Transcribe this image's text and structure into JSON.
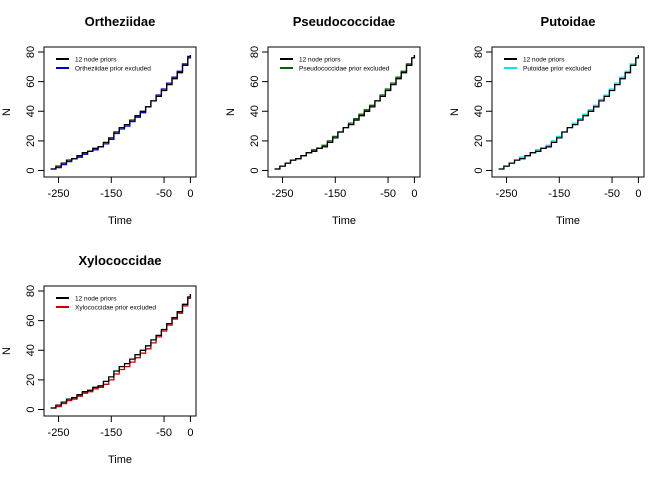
{
  "chart_data": [
    {
      "type": "line",
      "title": "Ortheziidae",
      "xlabel": "Time",
      "ylabel": "N",
      "xlim": [
        -270,
        3
      ],
      "ylim": [
        -1,
        80
      ],
      "xticks": [
        -250,
        -150,
        -50,
        0
      ],
      "yticks": [
        0,
        20,
        40,
        60,
        80
      ],
      "legend_position": "top-left",
      "series": [
        {
          "name": "12 node priors",
          "color": "#000000",
          "x": [
            -265,
            -255,
            -245,
            -235,
            -225,
            -215,
            -205,
            -195,
            -185,
            -175,
            -165,
            -155,
            -145,
            -135,
            -125,
            -115,
            -105,
            -95,
            -85,
            -75,
            -65,
            -55,
            -45,
            -35,
            -25,
            -15,
            -5,
            0
          ],
          "y": [
            1,
            3,
            5,
            7,
            8,
            10,
            12,
            13,
            15,
            16,
            19,
            22,
            26,
            29,
            31,
            34,
            37,
            40,
            43,
            47,
            50,
            54,
            58,
            62,
            66,
            71,
            76,
            78
          ]
        },
        {
          "name": "Ortheziidae prior excluded",
          "color": "#0000cc",
          "x": [
            -265,
            -255,
            -245,
            -235,
            -225,
            -215,
            -205,
            -195,
            -185,
            -175,
            -165,
            -155,
            -145,
            -135,
            -125,
            -115,
            -105,
            -95,
            -85,
            -75,
            -65,
            -55,
            -45,
            -35,
            -25,
            -15,
            -5,
            0
          ],
          "y": [
            1,
            2,
            4,
            6,
            8,
            9,
            11,
            13,
            14,
            16,
            18,
            21,
            25,
            28,
            30,
            33,
            36,
            39,
            43,
            47,
            51,
            55,
            59,
            63,
            67,
            72,
            77,
            78
          ]
        }
      ]
    },
    {
      "type": "line",
      "title": "Pseudococcidae",
      "xlabel": "Time",
      "ylabel": "N",
      "xlim": [
        -270,
        3
      ],
      "ylim": [
        -1,
        80
      ],
      "xticks": [
        -250,
        -150,
        -50,
        0
      ],
      "yticks": [
        0,
        20,
        40,
        60,
        80
      ],
      "legend_position": "top-left",
      "series": [
        {
          "name": "12 node priors",
          "color": "#000000",
          "x": [
            -265,
            -255,
            -245,
            -235,
            -225,
            -215,
            -205,
            -195,
            -185,
            -175,
            -165,
            -155,
            -145,
            -135,
            -125,
            -115,
            -105,
            -95,
            -85,
            -75,
            -65,
            -55,
            -45,
            -35,
            -25,
            -15,
            -5,
            0
          ],
          "y": [
            1,
            3,
            5,
            7,
            8,
            10,
            12,
            13,
            15,
            16,
            19,
            22,
            26,
            29,
            31,
            34,
            37,
            40,
            43,
            47,
            50,
            54,
            58,
            62,
            66,
            71,
            76,
            78
          ]
        },
        {
          "name": "Pseudococcidae prior excluded",
          "color": "#006400",
          "x": [
            -265,
            -255,
            -245,
            -235,
            -225,
            -215,
            -205,
            -195,
            -185,
            -175,
            -165,
            -155,
            -145,
            -135,
            -125,
            -115,
            -105,
            -95,
            -85,
            -75,
            -65,
            -55,
            -45,
            -35,
            -25,
            -15,
            -5,
            0
          ],
          "y": [
            1,
            3,
            5,
            7,
            8,
            10,
            12,
            14,
            15,
            17,
            20,
            23,
            26,
            29,
            32,
            35,
            38,
            41,
            44,
            47,
            51,
            55,
            59,
            63,
            67,
            72,
            76,
            78
          ]
        }
      ]
    },
    {
      "type": "line",
      "title": "Putoidae",
      "xlabel": "Time",
      "ylabel": "N",
      "xlim": [
        -270,
        3
      ],
      "ylim": [
        -1,
        80
      ],
      "xticks": [
        -250,
        -150,
        -50,
        0
      ],
      "yticks": [
        0,
        20,
        40,
        60,
        80
      ],
      "legend_position": "top-left",
      "series": [
        {
          "name": "12 node priors",
          "color": "#000000",
          "x": [
            -265,
            -255,
            -245,
            -235,
            -225,
            -215,
            -205,
            -195,
            -185,
            -175,
            -165,
            -155,
            -145,
            -135,
            -125,
            -115,
            -105,
            -95,
            -85,
            -75,
            -65,
            -55,
            -45,
            -35,
            -25,
            -15,
            -5,
            0
          ],
          "y": [
            1,
            3,
            5,
            7,
            8,
            10,
            12,
            13,
            15,
            16,
            19,
            22,
            26,
            29,
            31,
            34,
            37,
            40,
            43,
            47,
            50,
            54,
            58,
            62,
            66,
            71,
            76,
            78
          ]
        },
        {
          "name": "Putoidae prior excluded",
          "color": "#00e5ee",
          "x": [
            -265,
            -255,
            -245,
            -235,
            -225,
            -215,
            -205,
            -195,
            -185,
            -175,
            -165,
            -155,
            -145,
            -135,
            -125,
            -115,
            -105,
            -95,
            -85,
            -75,
            -65,
            -55,
            -45,
            -35,
            -25,
            -15,
            -5,
            0
          ],
          "y": [
            1,
            3,
            5,
            7,
            9,
            10,
            12,
            14,
            15,
            17,
            20,
            23,
            26,
            29,
            32,
            35,
            38,
            41,
            44,
            48,
            51,
            55,
            59,
            63,
            67,
            72,
            76,
            78
          ]
        }
      ]
    },
    {
      "type": "line",
      "title": "Xylococcidae",
      "xlabel": "Time",
      "ylabel": "N",
      "xlim": [
        -270,
        3
      ],
      "ylim": [
        -1,
        80
      ],
      "xticks": [
        -250,
        -150,
        -50,
        0
      ],
      "yticks": [
        0,
        20,
        40,
        60,
        80
      ],
      "legend_position": "top-left",
      "series": [
        {
          "name": "12 node priors",
          "color": "#000000",
          "x": [
            -265,
            -255,
            -245,
            -235,
            -225,
            -215,
            -205,
            -195,
            -185,
            -175,
            -165,
            -155,
            -145,
            -135,
            -125,
            -115,
            -105,
            -95,
            -85,
            -75,
            -65,
            -55,
            -45,
            -35,
            -25,
            -15,
            -5,
            0
          ],
          "y": [
            1,
            3,
            5,
            7,
            8,
            10,
            12,
            13,
            15,
            16,
            19,
            22,
            26,
            29,
            31,
            34,
            37,
            40,
            43,
            47,
            50,
            54,
            58,
            62,
            66,
            71,
            76,
            78
          ]
        },
        {
          "name": "Xylococcidae prior excluded",
          "color": "#cc0000",
          "x": [
            -265,
            -255,
            -245,
            -235,
            -225,
            -215,
            -205,
            -195,
            -185,
            -175,
            -165,
            -155,
            -145,
            -135,
            -125,
            -115,
            -105,
            -95,
            -85,
            -75,
            -65,
            -55,
            -45,
            -35,
            -25,
            -15,
            -5,
            0
          ],
          "y": [
            1,
            2,
            4,
            6,
            7,
            9,
            11,
            12,
            14,
            15,
            17,
            20,
            24,
            27,
            29,
            32,
            35,
            38,
            41,
            45,
            49,
            53,
            57,
            61,
            65,
            70,
            75,
            78
          ]
        }
      ]
    }
  ]
}
